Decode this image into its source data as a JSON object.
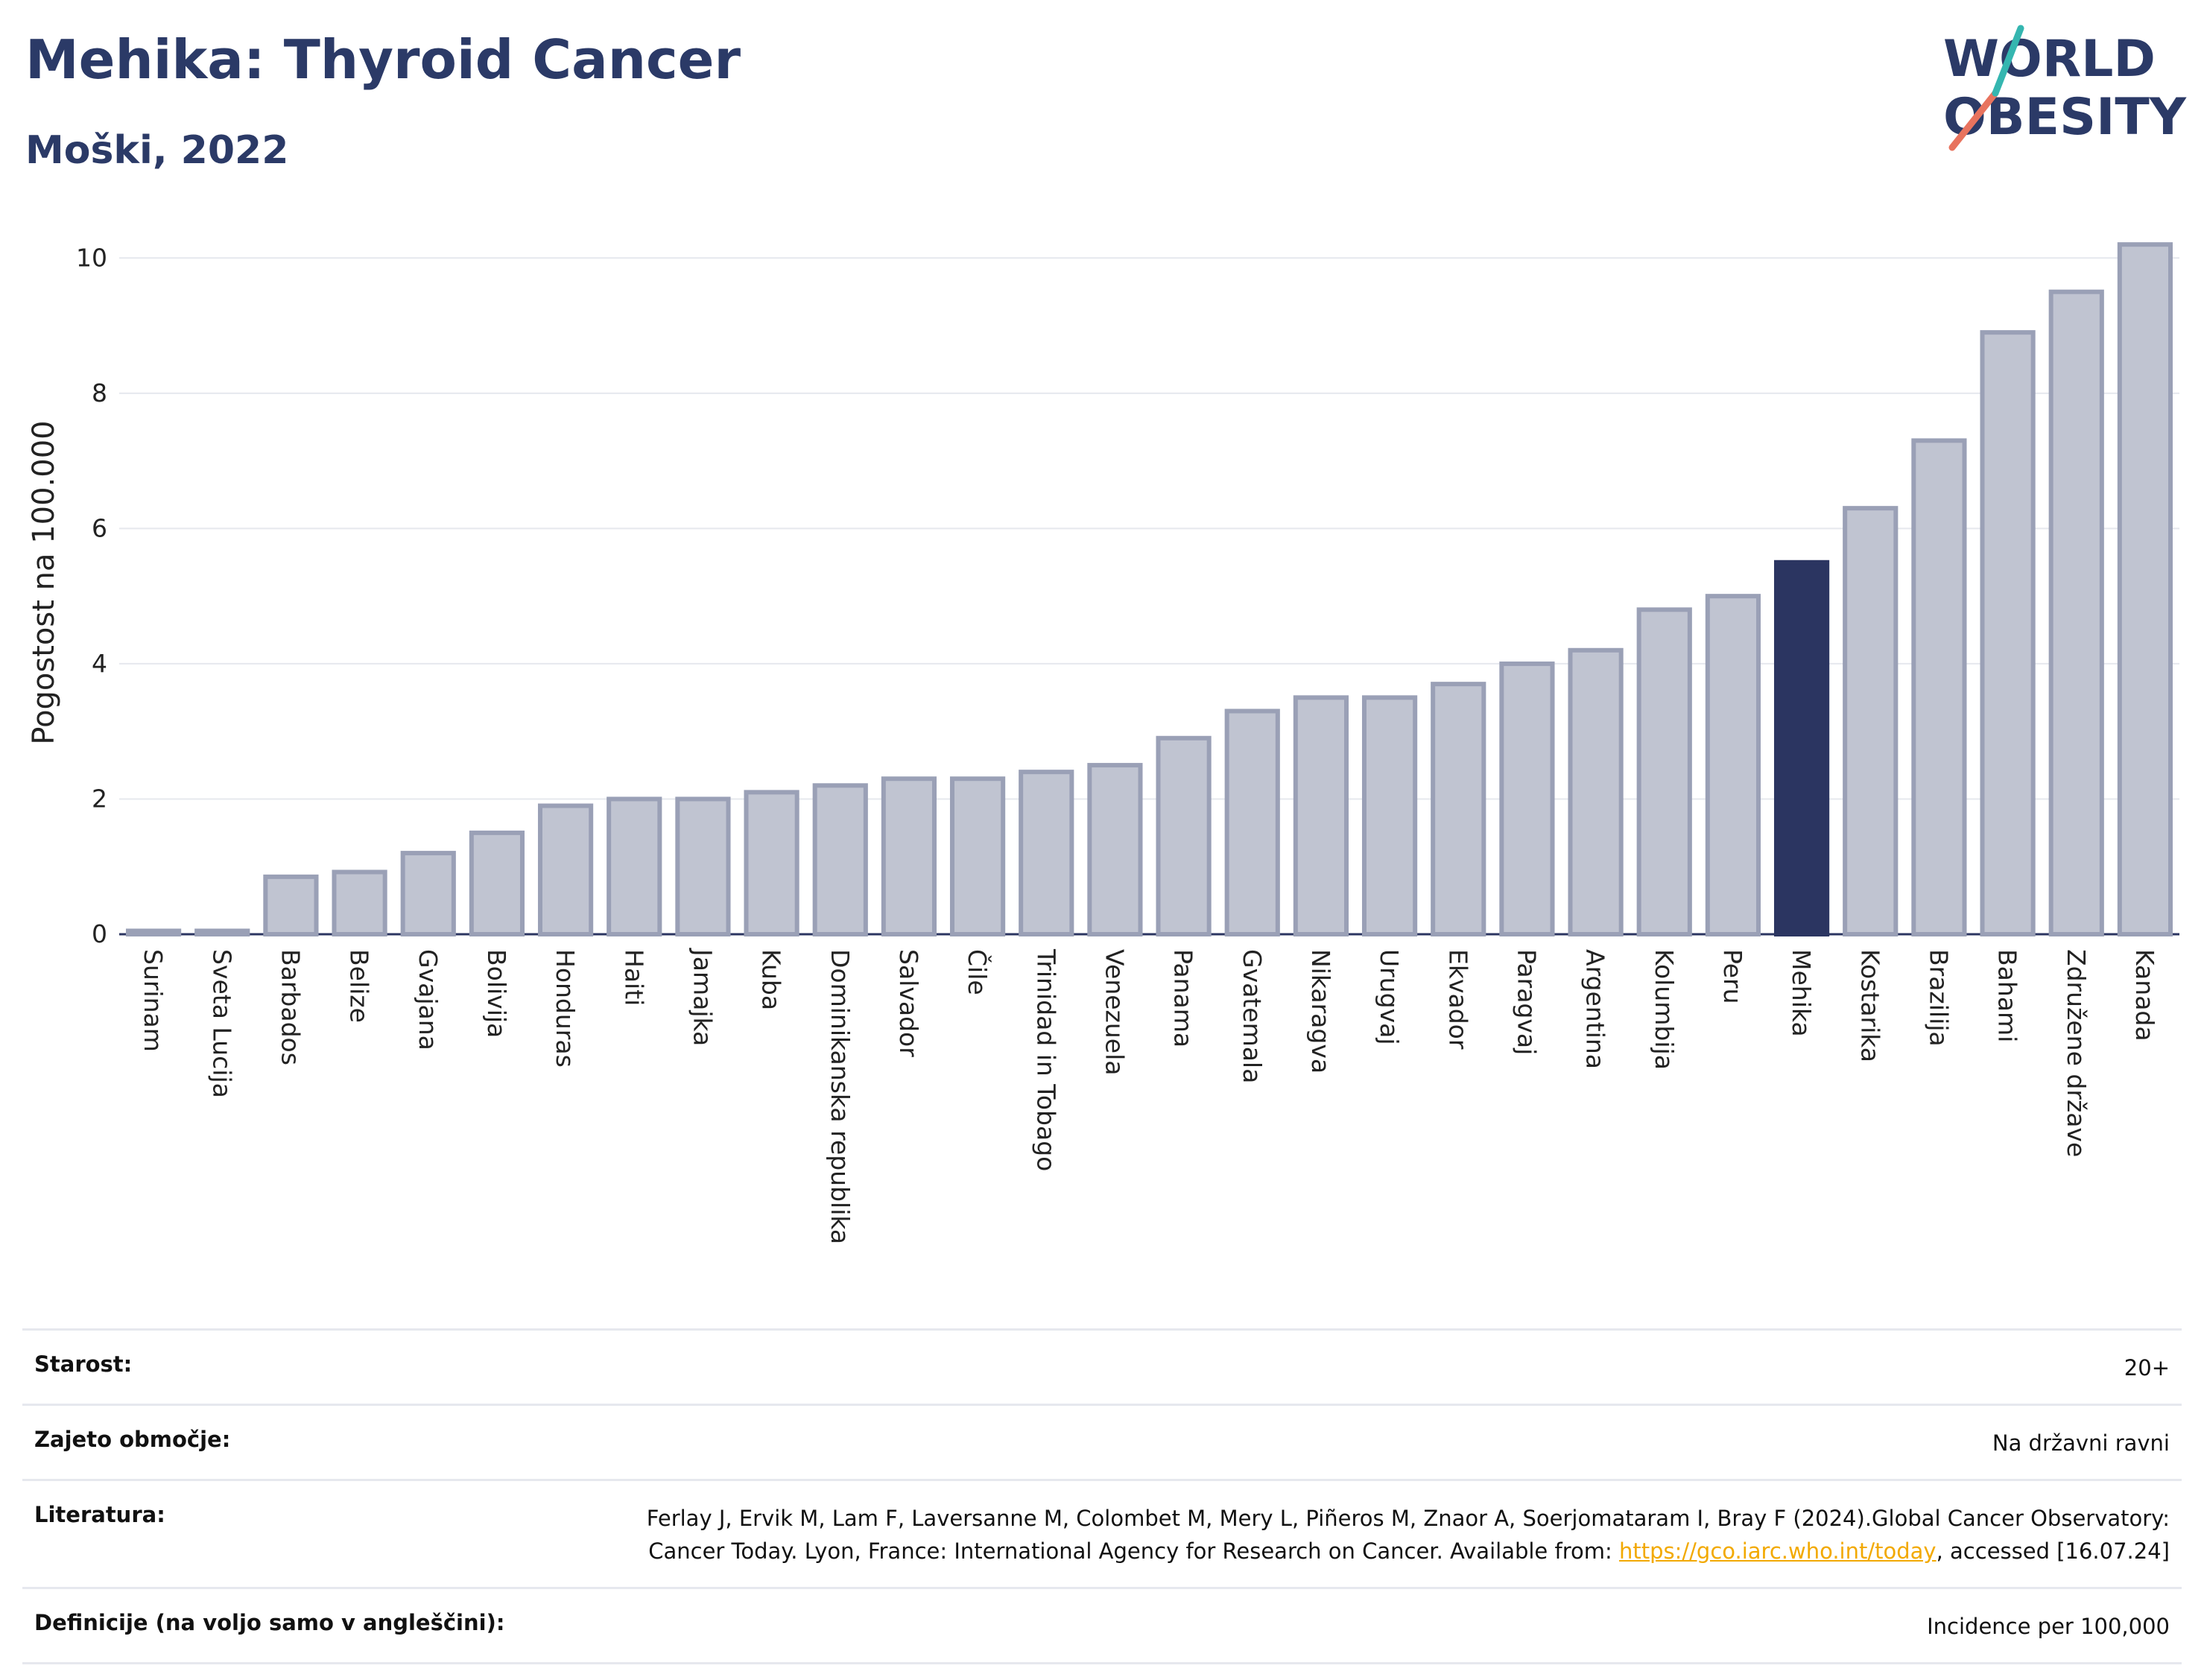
{
  "header": {
    "title": "Mehika: Thyroid Cancer",
    "subtitle": "Moški, 2022"
  },
  "logo": {
    "line1": "WORLD",
    "line2": "OBESITY"
  },
  "colors": {
    "bar": "#c0c4d1",
    "bar_stroke": "#9aa0b6",
    "highlight": "#2b3561",
    "title": "#2b3a67",
    "grid": "#e6e8ee",
    "link": "#f2a900"
  },
  "chart_data": {
    "type": "bar",
    "ylabel": "Pogostost na 100.000",
    "xlabel": "",
    "ylim": [
      0,
      10.4
    ],
    "yticks": [
      0,
      2,
      4,
      6,
      8,
      10
    ],
    "grid": true,
    "highlight": "Mehika",
    "categories": [
      "Surinam",
      "Sveta Lucija",
      "Barbados",
      "Belize",
      "Gvajana",
      "Bolivija",
      "Honduras",
      "Haiti",
      "Jamajka",
      "Kuba",
      "Dominikanska republika",
      "Salvador",
      "Čile",
      "Trinidad in Tobago",
      "Venezuela",
      "Panama",
      "Gvatemala",
      "Nikaragva",
      "Urugvaj",
      "Ekvador",
      "Paragvaj",
      "Argentina",
      "Kolumbija",
      "Peru",
      "Mehika",
      "Kostarika",
      "Brazilija",
      "Bahami",
      "Združene države",
      "Kanada"
    ],
    "values": [
      0.05,
      0.05,
      0.85,
      0.92,
      1.2,
      1.5,
      1.9,
      2.0,
      2.0,
      2.1,
      2.2,
      2.3,
      2.3,
      2.4,
      2.5,
      2.9,
      3.3,
      3.5,
      3.5,
      3.7,
      4.0,
      4.2,
      4.8,
      5.0,
      5.5,
      6.3,
      7.3,
      8.9,
      9.5,
      10.2
    ]
  },
  "info": {
    "age_label": "Starost:",
    "age_value": "20+",
    "coverage_label": "Zajeto območje:",
    "coverage_value": "Na državni ravni",
    "literature_label": "Literatura:",
    "literature_text1": "Ferlay J, Ervik M, Lam F, Laversanne M, Colombet M, Mery L, Piñeros M, Znaor A, Soerjomataram I, Bray F (2024).Global Cancer Observatory: Cancer Today. Lyon, France: International Agency for Research on Cancer. Available from: ",
    "literature_link": "https://gco.iarc.who.int/today",
    "literature_text2": ", accessed [16.07.24]",
    "definitions_label": "Definicije (na voljo samo v angleščini):",
    "definitions_value": "Incidence per 100,000"
  }
}
